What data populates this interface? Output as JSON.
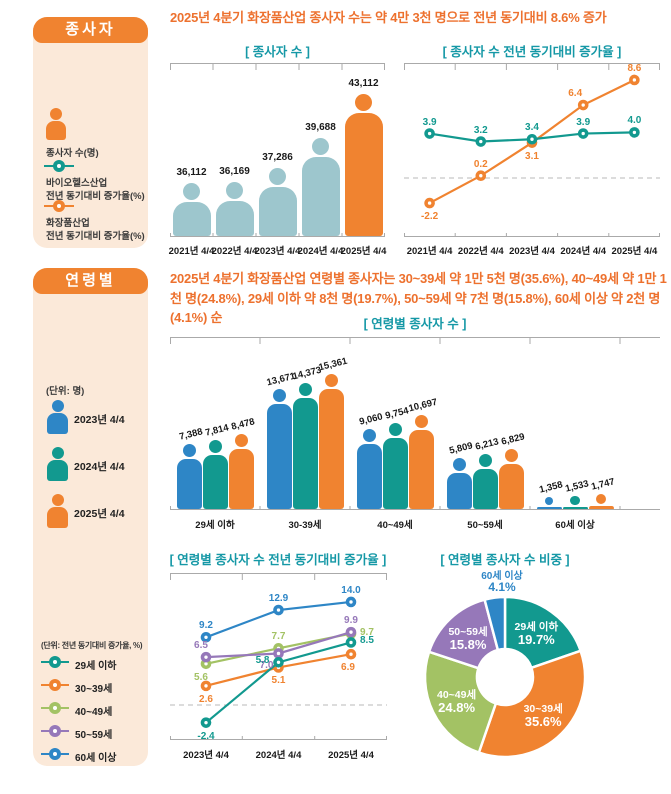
{
  "colors": {
    "orange": "#F08330",
    "light_teal": "#9DC6CD",
    "teal": "#12998F",
    "blue": "#2E86C6",
    "green": "#A3C264",
    "purple": "#9678B9",
    "headline": "#ED712E",
    "chart_title": "#1598A6",
    "panel_bg": "#FBE9D9",
    "axis": "#AAAAAA",
    "dashed": "#B8B8B8",
    "label_dark": "#1A1A1A"
  },
  "section_workers": {
    "sidebar_title": "종사자",
    "unit_person_label": "종사자 수(명)",
    "legend_bio_line1": "바이오헬스산업",
    "legend_bio_line2": "전년 동기대비 증가율(%)",
    "legend_cosmetic_line1": "화장품산업",
    "legend_cosmetic_line2": "전년 동기대비 증가율(%)",
    "headline": "2025년 4분기 화장품산업 종사자 수는 약 4만 3천 명으로 전년 동기대비 8.6% 증가"
  },
  "section_age": {
    "sidebar_title": "연령별",
    "unit_label": "(단위: 명)",
    "person_legend": [
      {
        "label": "2023년 4/4",
        "color": "#2E86C6"
      },
      {
        "label": "2024년 4/4",
        "color": "#12998F"
      },
      {
        "label": "2025년 4/4",
        "color": "#F08330"
      }
    ],
    "growth_unit_label": "(단위: 전년 동기대비 증가율, %)",
    "growth_legend": [
      {
        "label": "29세 이하",
        "color": "#12998F"
      },
      {
        "label": "30~39세",
        "color": "#F08330"
      },
      {
        "label": "40~49세",
        "color": "#A3C264"
      },
      {
        "label": "50~59세",
        "color": "#9678B9"
      },
      {
        "label": "60세 이상",
        "color": "#2E86C6"
      }
    ],
    "headline": "2025년 4분기 화장품산업 연령별 종사자는 30~39세 약 1만 5천 명(35.6%), 40~49세 약 1만 1천 명(24.8%), 29세 이하 약 8천 명(19.7%), 50~59세 약 7천 명(15.8%), 60세 이상 약 2천 명(4.1%) 순"
  },
  "chart_data": [
    {
      "id": "workers_count",
      "type": "bar",
      "style": "pictogram",
      "title": "[ 종사자 수 ]",
      "unit": "명",
      "categories": [
        "2021년 4/4",
        "2022년 4/4",
        "2023년 4/4",
        "2024년 4/4",
        "2025년 4/4"
      ],
      "values": [
        36112,
        36169,
        37286,
        39688,
        43112
      ],
      "bar_colors": [
        "#9DC6CD",
        "#9DC6CD",
        "#9DC6CD",
        "#9DC6CD",
        "#F08330"
      ]
    },
    {
      "id": "workers_growth",
      "type": "line",
      "title": "[ 종사자 수 전년 동기대비 증가율 ]",
      "unit": "%",
      "zero_line": true,
      "categories": [
        "2021년 4/4",
        "2022년 4/4",
        "2023년 4/4",
        "2024년 4/4",
        "2025년 4/4"
      ],
      "series": [
        {
          "name": "바이오헬스산업",
          "color": "#12998F",
          "values": [
            3.9,
            3.2,
            3.4,
            3.9,
            4.0
          ]
        },
        {
          "name": "화장품산업",
          "color": "#F08330",
          "values": [
            -2.2,
            0.2,
            3.1,
            6.4,
            8.6
          ]
        }
      ]
    },
    {
      "id": "age_count",
      "type": "bar",
      "style": "grouped-pictogram",
      "title": "[ 연령별 종사자 수 ]",
      "unit": "명",
      "categories": [
        "29세 이하",
        "30-39세",
        "40~49세",
        "50~59세",
        "60세 이상"
      ],
      "series": [
        {
          "name": "2023년 4/4",
          "color": "#2E86C6",
          "values": [
            7388,
            13671,
            9060,
            5809,
            1358
          ]
        },
        {
          "name": "2024년 4/4",
          "color": "#12998F",
          "values": [
            7814,
            14373,
            9754,
            6213,
            1533
          ]
        },
        {
          "name": "2025년 4/4",
          "color": "#F08330",
          "values": [
            8478,
            15361,
            10697,
            6829,
            1747
          ]
        }
      ]
    },
    {
      "id": "age_growth",
      "type": "line",
      "title": "[ 연령별 종사자 수 전년 동기대비 증가율 ]",
      "unit": "%",
      "zero_line": true,
      "categories": [
        "2023년 4/4",
        "2024년 4/4",
        "2025년 4/4"
      ],
      "series": [
        {
          "name": "29세 이하",
          "color": "#12998F",
          "values": [
            -2.4,
            5.8,
            8.5
          ]
        },
        {
          "name": "30~39세",
          "color": "#F08330",
          "values": [
            2.6,
            5.1,
            6.9
          ]
        },
        {
          "name": "40~49세",
          "color": "#A3C264",
          "values": [
            5.6,
            7.7,
            9.7
          ]
        },
        {
          "name": "50~59세",
          "color": "#9678B9",
          "values": [
            6.5,
            7.0,
            9.9
          ]
        },
        {
          "name": "60세 이상",
          "color": "#2E86C6",
          "values": [
            9.2,
            12.9,
            14.0
          ]
        }
      ]
    },
    {
      "id": "age_share",
      "type": "pie",
      "style": "donut",
      "title": "[ 연령별 종사자 수 비중 ]",
      "start_angle_deg": 0,
      "direction": "clockwise",
      "slices": [
        {
          "label": "29세 이하",
          "pct": 19.7,
          "color": "#12998F"
        },
        {
          "label": "30~39세",
          "pct": 35.6,
          "color": "#F08330"
        },
        {
          "label": "40~49세",
          "pct": 24.8,
          "color": "#A3C264"
        },
        {
          "label": "50~59세",
          "pct": 15.8,
          "color": "#9678B9"
        },
        {
          "label": "60세 이상",
          "pct": 4.1,
          "color": "#2E86C6"
        }
      ]
    }
  ]
}
